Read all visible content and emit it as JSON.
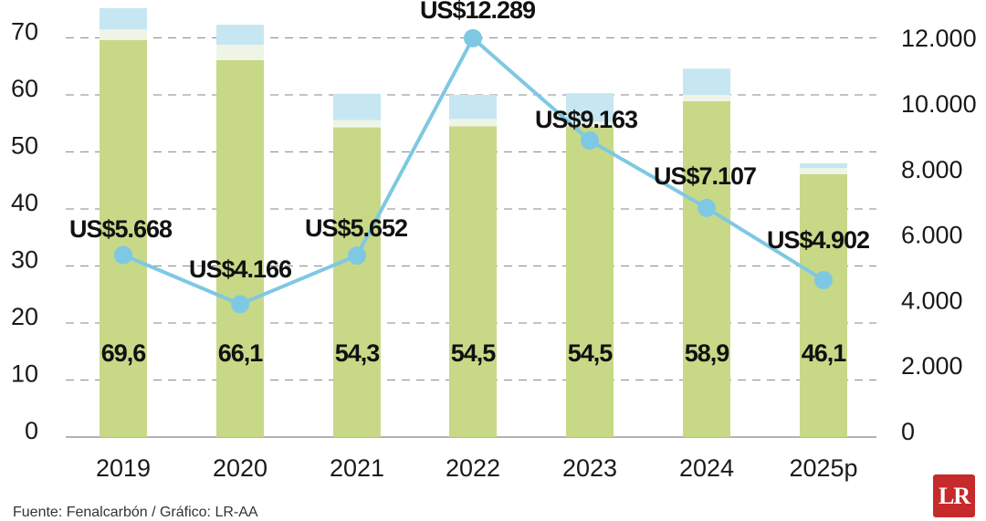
{
  "chart_data": {
    "type": "bar",
    "combo": "stacked bar + line (dual axis)",
    "categories": [
      "2019",
      "2020",
      "2021",
      "2022",
      "2023",
      "2024",
      "2025p"
    ],
    "series": [
      {
        "name": "Main component (green bars, labeled)",
        "type": "bar",
        "axis": "left",
        "color": "#c7d987",
        "values": [
          69.6,
          66.1,
          54.3,
          54.5,
          54.5,
          58.9,
          46.1
        ],
        "labels": [
          "69,6",
          "66,1",
          "54,3",
          "54,5",
          "54,5",
          "58,9",
          "46,1"
        ]
      },
      {
        "name": "Secondary component (pale segment, unlabeled)",
        "type": "bar",
        "axis": "left",
        "color": "#eef5e6",
        "values": [
          1.9,
          2.7,
          1.3,
          1.3,
          0.8,
          1.1,
          1.1
        ]
      },
      {
        "name": "Tertiary component (light blue segment, unlabeled)",
        "type": "bar",
        "axis": "left",
        "color": "#c6e6f2",
        "values": [
          3.7,
          3.5,
          4.6,
          4.2,
          5.0,
          4.6,
          0.8
        ]
      },
      {
        "name": "Value (US$)",
        "type": "line",
        "axis": "right",
        "color": "#7ec8e3",
        "values": [
          5668,
          4166,
          5652,
          12289,
          9163,
          7107,
          4902
        ],
        "labels": [
          "US$5.668",
          "US$4.166",
          "US$5.652",
          "US$12.289",
          "US$9.163",
          "US$7.107",
          "US$4.902"
        ]
      }
    ],
    "title": "",
    "xlabel": "",
    "ylabel": "",
    "left_axis": {
      "ticks": [
        "0",
        "10",
        "20",
        "30",
        "40",
        "50",
        "60",
        "70"
      ],
      "ylim": [
        0,
        70
      ]
    },
    "right_axis": {
      "ticks": [
        "0",
        "2.000",
        "4.000",
        "6.000",
        "8.000",
        "10.000",
        "12.000"
      ],
      "ylim": [
        0,
        12000
      ]
    },
    "grid": "dashed horizontal",
    "legend": "none"
  },
  "footer": {
    "source": "Fuente: Fenalcarbón / Gráfico: LR-AA",
    "logo_text": "LR",
    "logo_color": "#c62a2a"
  },
  "colors": {
    "bar_main": "#c7d987",
    "bar_pale": "#eef5e6",
    "bar_blue": "#c6e6f2",
    "line": "#7ec8e3",
    "grid": "#8a8a8a",
    "axis": "#9a9a9a"
  }
}
